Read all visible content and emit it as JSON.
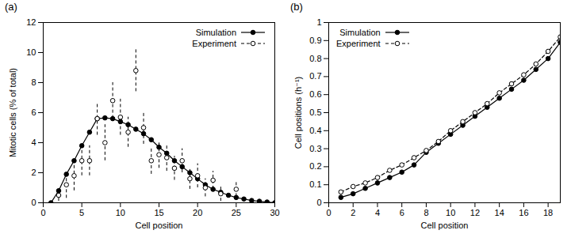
{
  "chart_data": [
    {
      "type": "line",
      "title": "(a)",
      "x_label": "Cell position",
      "y_label": "Mitotic cells (% of total)",
      "xlim": [
        0,
        30
      ],
      "xticks": [
        0,
        5,
        10,
        15,
        20,
        25,
        30
      ],
      "ylim": [
        0,
        12
      ],
      "yticks": [
        0,
        2,
        4,
        6,
        8,
        10,
        12
      ],
      "grid": false,
      "legend": "top-right",
      "series": [
        {
          "name": "Simulation",
          "type": "line",
          "color": "#000000",
          "marker": "filled circle",
          "line_style": "solid",
          "x": [
            1,
            2,
            3,
            4,
            5,
            6,
            7,
            8,
            9,
            10,
            11,
            12,
            13,
            14,
            15,
            16,
            17,
            18,
            19,
            20,
            21,
            22,
            23,
            24,
            25,
            26,
            27,
            28,
            29,
            30
          ],
          "values": [
            0,
            0.8,
            1.9,
            2.8,
            3.8,
            4.7,
            5.6,
            5.65,
            5.6,
            5.4,
            5.2,
            4.9,
            4.6,
            4.2,
            3.7,
            3.3,
            2.8,
            2.4,
            2.0,
            1.6,
            1.2,
            0.9,
            0.7,
            0.5,
            0.35,
            0.25,
            0.15,
            0.1,
            0.05,
            0
          ]
        },
        {
          "name": "Experiment",
          "type": "scatter",
          "color": "#000000",
          "marker": "open circle",
          "line_style": "dashed",
          "x": [
            2,
            3,
            4,
            5,
            6,
            7,
            8,
            9,
            10,
            11,
            12,
            13,
            14,
            15,
            16,
            17,
            18,
            19,
            20,
            21,
            22,
            23,
            25
          ],
          "values": [
            0.5,
            1.2,
            1.8,
            2.8,
            2.8,
            5.6,
            4.0,
            6.8,
            5.7,
            4.7,
            8.8,
            5.0,
            2.8,
            3.2,
            3.0,
            2.3,
            2.8,
            1.6,
            1.8,
            1.0,
            1.5,
            0.6,
            0.9
          ],
          "errors": [
            0.4,
            0.9,
            1.0,
            1.0,
            1.0,
            1.1,
            1.2,
            1.2,
            1.2,
            1.0,
            1.4,
            1.1,
            0.9,
            0.9,
            0.9,
            0.8,
            0.8,
            0.7,
            0.8,
            0.6,
            0.6,
            0.5,
            0.5
          ]
        }
      ]
    },
    {
      "type": "line",
      "title": "(b)",
      "x_label": "Cell position",
      "y_label": "Cell positions (h⁻¹)",
      "xlim": [
        0,
        19
      ],
      "xticks": [
        0,
        2,
        4,
        6,
        8,
        10,
        12,
        14,
        16,
        18
      ],
      "ylim": [
        0,
        1
      ],
      "yticks": [
        0,
        0.1,
        0.2,
        0.3,
        0.4,
        0.5,
        0.6,
        0.7,
        0.8,
        0.9,
        1
      ],
      "grid": false,
      "legend": "top-left",
      "series": [
        {
          "name": "Simulation",
          "type": "line",
          "color": "#000000",
          "marker": "filled circle",
          "line_style": "solid",
          "x": [
            1,
            2,
            3,
            4,
            5,
            6,
            7,
            8,
            9,
            10,
            11,
            12,
            13,
            14,
            15,
            16,
            17,
            18,
            19
          ],
          "values": [
            0.03,
            0.05,
            0.08,
            0.11,
            0.14,
            0.17,
            0.21,
            0.28,
            0.33,
            0.38,
            0.43,
            0.48,
            0.53,
            0.58,
            0.63,
            0.68,
            0.74,
            0.8,
            0.89
          ]
        },
        {
          "name": "Experiment",
          "type": "line",
          "color": "#000000",
          "marker": "open circle",
          "line_style": "dashed",
          "x": [
            1,
            2,
            3,
            4,
            5,
            6,
            7,
            8,
            9,
            10,
            11,
            12,
            13,
            14,
            15,
            16,
            17,
            18,
            19
          ],
          "values": [
            0.06,
            0.09,
            0.11,
            0.14,
            0.18,
            0.21,
            0.25,
            0.29,
            0.34,
            0.4,
            0.45,
            0.5,
            0.55,
            0.61,
            0.66,
            0.71,
            0.77,
            0.84,
            0.92
          ]
        }
      ]
    }
  ]
}
